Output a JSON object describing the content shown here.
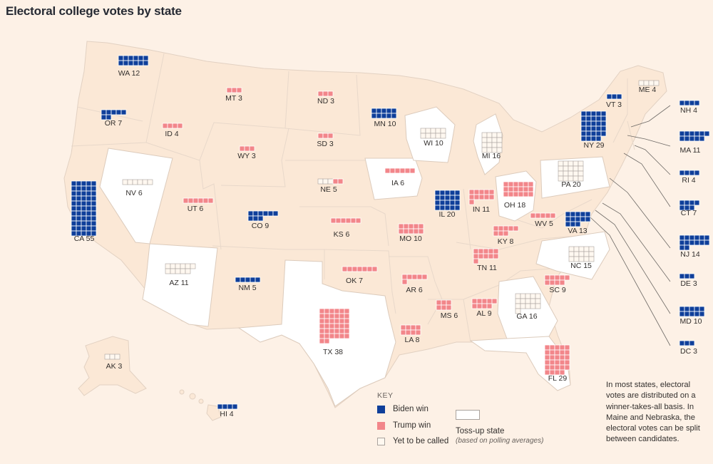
{
  "title": "Electoral college votes by state",
  "colors": {
    "background": "#fdf1e6",
    "state_fill": "#fbe8d6",
    "tossup_fill": "#ffffff",
    "border": "#e2d1c2",
    "biden": "#0f3f9a",
    "trump": "#f2868a"
  },
  "states": [
    {
      "abbr": "WA",
      "votes": 12,
      "status": "biden"
    },
    {
      "abbr": "OR",
      "votes": 7,
      "status": "biden"
    },
    {
      "abbr": "CA",
      "votes": 55,
      "status": "biden"
    },
    {
      "abbr": "NV",
      "votes": 6,
      "status": "pending",
      "tossup": true
    },
    {
      "abbr": "ID",
      "votes": 4,
      "status": "trump"
    },
    {
      "abbr": "MT",
      "votes": 3,
      "status": "trump"
    },
    {
      "abbr": "WY",
      "votes": 3,
      "status": "trump"
    },
    {
      "abbr": "UT",
      "votes": 6,
      "status": "trump"
    },
    {
      "abbr": "AZ",
      "votes": 11,
      "status": "pending",
      "tossup": true
    },
    {
      "abbr": "CO",
      "votes": 9,
      "status": "biden"
    },
    {
      "abbr": "NM",
      "votes": 5,
      "status": "biden"
    },
    {
      "abbr": "ND",
      "votes": 3,
      "status": "trump"
    },
    {
      "abbr": "SD",
      "votes": 3,
      "status": "trump"
    },
    {
      "abbr": "NE",
      "votes": 5,
      "status": "split"
    },
    {
      "abbr": "KS",
      "votes": 6,
      "status": "trump"
    },
    {
      "abbr": "OK",
      "votes": 7,
      "status": "trump"
    },
    {
      "abbr": "TX",
      "votes": 38,
      "status": "trump",
      "tossup": true
    },
    {
      "abbr": "MN",
      "votes": 10,
      "status": "biden"
    },
    {
      "abbr": "IA",
      "votes": 6,
      "status": "trump",
      "tossup": true
    },
    {
      "abbr": "MO",
      "votes": 10,
      "status": "trump"
    },
    {
      "abbr": "AR",
      "votes": 6,
      "status": "trump"
    },
    {
      "abbr": "LA",
      "votes": 8,
      "status": "trump"
    },
    {
      "abbr": "WI",
      "votes": 10,
      "status": "pending",
      "tossup": true
    },
    {
      "abbr": "IL",
      "votes": 20,
      "status": "biden"
    },
    {
      "abbr": "MI",
      "votes": 16,
      "status": "pending",
      "tossup": true
    },
    {
      "abbr": "IN",
      "votes": 11,
      "status": "trump"
    },
    {
      "abbr": "OH",
      "votes": 18,
      "status": "trump",
      "tossup": true
    },
    {
      "abbr": "KY",
      "votes": 8,
      "status": "trump"
    },
    {
      "abbr": "TN",
      "votes": 11,
      "status": "trump"
    },
    {
      "abbr": "MS",
      "votes": 6,
      "status": "trump"
    },
    {
      "abbr": "AL",
      "votes": 9,
      "status": "trump"
    },
    {
      "abbr": "GA",
      "votes": 16,
      "status": "pending",
      "tossup": true
    },
    {
      "abbr": "FL",
      "votes": 29,
      "status": "trump",
      "tossup": true
    },
    {
      "abbr": "SC",
      "votes": 9,
      "status": "trump"
    },
    {
      "abbr": "NC",
      "votes": 15,
      "status": "pending",
      "tossup": true
    },
    {
      "abbr": "VA",
      "votes": 13,
      "status": "biden"
    },
    {
      "abbr": "WV",
      "votes": 5,
      "status": "trump"
    },
    {
      "abbr": "PA",
      "votes": 20,
      "status": "pending",
      "tossup": true
    },
    {
      "abbr": "NY",
      "votes": 29,
      "status": "biden"
    },
    {
      "abbr": "VT",
      "votes": 3,
      "status": "biden"
    },
    {
      "abbr": "ME",
      "votes": 4,
      "status": "pending"
    },
    {
      "abbr": "NH",
      "votes": 4,
      "status": "biden"
    },
    {
      "abbr": "MA",
      "votes": 11,
      "status": "biden"
    },
    {
      "abbr": "RI",
      "votes": 4,
      "status": "biden"
    },
    {
      "abbr": "CT",
      "votes": 7,
      "status": "biden"
    },
    {
      "abbr": "NJ",
      "votes": 14,
      "status": "biden"
    },
    {
      "abbr": "DE",
      "votes": 3,
      "status": "biden"
    },
    {
      "abbr": "MD",
      "votes": 10,
      "status": "biden"
    },
    {
      "abbr": "DC",
      "votes": 3,
      "status": "biden"
    },
    {
      "abbr": "AK",
      "votes": 3,
      "status": "pending"
    },
    {
      "abbr": "HI",
      "votes": 4,
      "status": "biden"
    }
  ],
  "key": {
    "title": "KEY",
    "biden": "Biden win",
    "trump": "Trump win",
    "pending": "Yet to be called",
    "tossup": "Toss-up state",
    "tossup_note": "(based on polling averages)"
  },
  "note": "In most states, electoral votes are distributed on a winner-takes-all basis. In Maine and Nebraska, the electoral votes can be split between candidates."
}
